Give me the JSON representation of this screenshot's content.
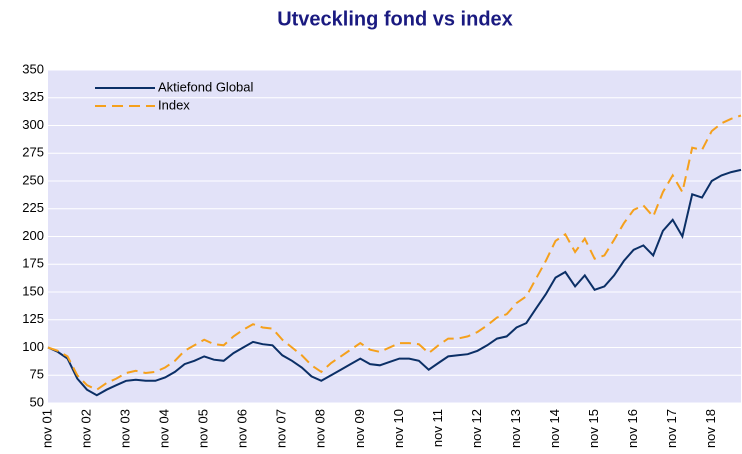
{
  "chart_data": {
    "type": "line",
    "title": "Utveckling fond vs index",
    "categories": [
      "nov 01",
      null,
      null,
      null,
      "nov 02",
      null,
      null,
      null,
      "nov 03",
      null,
      null,
      null,
      "nov 04",
      null,
      null,
      null,
      "nov 05",
      null,
      null,
      null,
      "nov 06",
      null,
      null,
      null,
      "nov 07",
      null,
      null,
      null,
      "nov 08",
      null,
      null,
      null,
      "nov 09",
      null,
      null,
      null,
      "nov 10",
      null,
      null,
      null,
      "nov 11",
      null,
      null,
      null,
      "nov 12",
      null,
      null,
      null,
      "nov 13",
      null,
      null,
      null,
      "nov 14",
      null,
      null,
      null,
      "nov 15",
      null,
      null,
      null,
      "nov 16",
      null,
      null,
      null,
      "nov 17",
      null,
      null,
      null,
      "nov 18",
      null,
      null,
      null
    ],
    "series": [
      {
        "name": "Aktiefond Global",
        "color": "#0b2f66",
        "dashed": false,
        "values": [
          100,
          96,
          90,
          72,
          62,
          57,
          62,
          66,
          70,
          71,
          70,
          70,
          73,
          78,
          85,
          88,
          92,
          89,
          88,
          95,
          100,
          105,
          103,
          102,
          93,
          88,
          82,
          74,
          70,
          75,
          80,
          85,
          90,
          85,
          84,
          87,
          90,
          90,
          88,
          80,
          86,
          92,
          93,
          94,
          97,
          102,
          108,
          110,
          118,
          122,
          135,
          148,
          163,
          168,
          155,
          165,
          152,
          155,
          165,
          178,
          188,
          192,
          183,
          205,
          215,
          200,
          238,
          235,
          250,
          255,
          258,
          260
        ]
      },
      {
        "name": "Index",
        "color": "#f5a01c",
        "dashed": true,
        "values": [
          100,
          97,
          92,
          75,
          66,
          62,
          68,
          72,
          77,
          79,
          77,
          78,
          82,
          88,
          97,
          102,
          107,
          103,
          102,
          110,
          116,
          121,
          118,
          117,
          107,
          100,
          93,
          84,
          78,
          86,
          92,
          98,
          104,
          98,
          96,
          100,
          104,
          104,
          103,
          95,
          102,
          108,
          108,
          110,
          114,
          120,
          127,
          130,
          140,
          146,
          162,
          178,
          196,
          202,
          186,
          198,
          180,
          183,
          197,
          212,
          224,
          228,
          218,
          240,
          255,
          240,
          280,
          278,
          295,
          302,
          306,
          309
        ]
      }
    ],
    "ylim": [
      50,
      350
    ],
    "yticks": [
      50,
      75,
      100,
      125,
      150,
      175,
      200,
      225,
      250,
      275,
      300,
      325,
      350
    ],
    "grid": true,
    "legend": "upper left",
    "background": "#e2e2f8"
  }
}
